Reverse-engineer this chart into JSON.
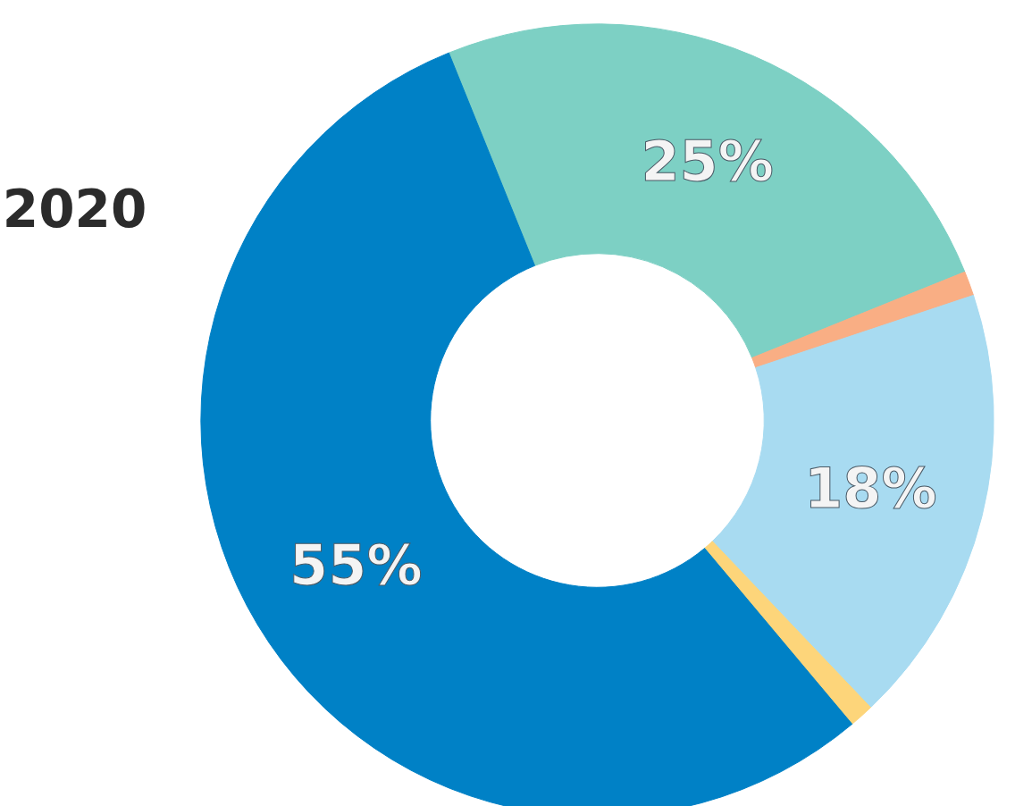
{
  "chart_data": {
    "type": "donut",
    "title": "2020",
    "categories": [
      null,
      null,
      null,
      null,
      null
    ],
    "values": [
      25,
      1,
      18,
      1,
      55
    ],
    "colors": [
      "#7dd0c4",
      "#f9ae84",
      "#a8dbf1",
      "#fdd57a",
      "#0081c6"
    ],
    "value_labels": [
      "25%",
      null,
      "18%",
      null,
      "55%"
    ]
  }
}
